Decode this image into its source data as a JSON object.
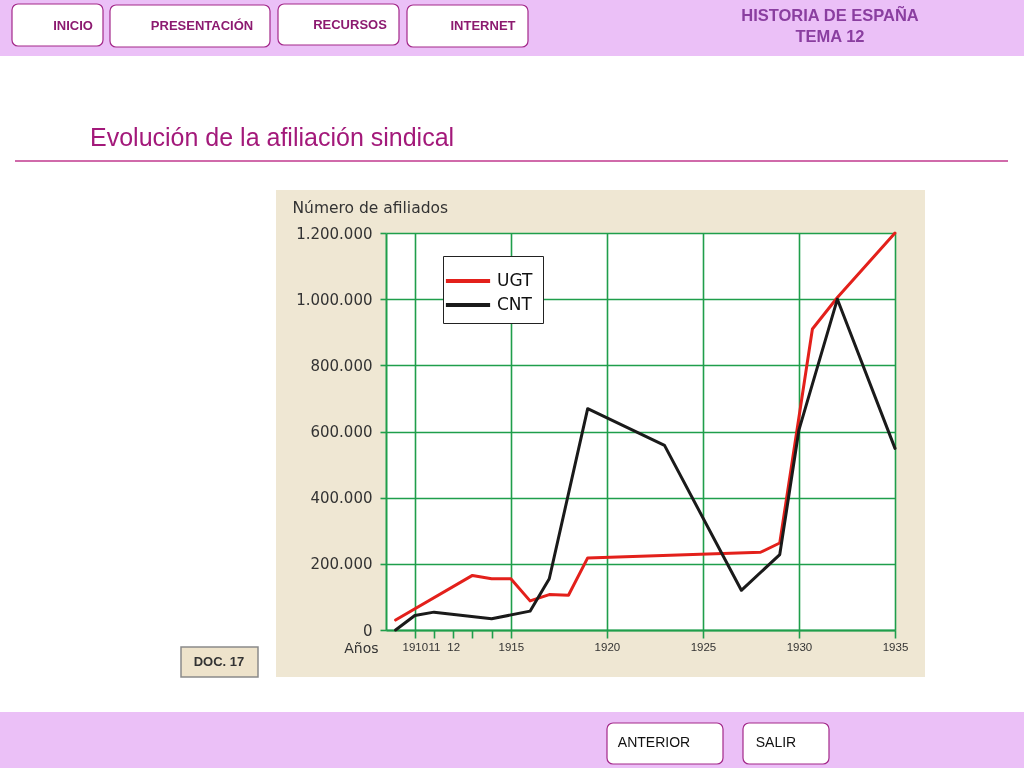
{
  "chart_data": {
    "type": "line",
    "title": "Evolución de la afiliación sindical",
    "xlabel": "Años",
    "ylabel": "Número de afiliados",
    "annotations": [
      "HISTORIA DE ESPAÑA",
      "TEMA 12",
      "INICIO",
      "PRESENTACIÓN",
      "RECURSOS",
      "INTERNET",
      "DOC. 17",
      "ANTERIOR",
      "SALIR"
    ],
    "series": [
      {
        "name": "UGT",
        "color": "#e3201b",
        "x": [
          1909,
          1913,
          1914,
          1915,
          1916,
          1917,
          1918,
          1919,
          1928,
          1929,
          1930.7,
          1932,
          1935
        ],
        "values": [
          30000,
          165000,
          155000,
          155000,
          88000,
          107000,
          105000,
          218000,
          235000,
          263000,
          910000,
          1005000,
          1200000
        ]
      },
      {
        "name": "CNT",
        "color": "#1a1a1a",
        "x": [
          1909,
          1910,
          1911,
          1914,
          1916,
          1917,
          1919,
          1923,
          1927,
          1929,
          1930,
          1932,
          1935
        ],
        "values": [
          0,
          44000,
          54000,
          34000,
          57000,
          155000,
          669000,
          558000,
          120000,
          228000,
          605000,
          1000000,
          549000
        ]
      }
    ],
    "xlim": [
      1908.5,
      1935
    ],
    "xticks": [
      1910,
      {
        "value": 1911,
        "label": "11"
      },
      {
        "value": 1912,
        "label": "12"
      },
      {
        "value": 1913,
        "label": null
      },
      {
        "value": 1914,
        "label": null
      },
      1915,
      1920,
      1925,
      1930,
      1935
    ],
    "ylim": [
      0,
      1200000
    ],
    "yticks": [
      0,
      {
        "value": 200000,
        "label": "200.000"
      },
      {
        "value": 400000,
        "label": "400.000"
      },
      {
        "value": 600000,
        "label": "600.000"
      },
      {
        "value": 800000,
        "label": "800.000"
      },
      {
        "value": 1000000,
        "label": "1.000.000"
      },
      {
        "value": 1200000,
        "label": "1.200.000"
      }
    ],
    "grid": true,
    "legend": "top left"
  }
}
